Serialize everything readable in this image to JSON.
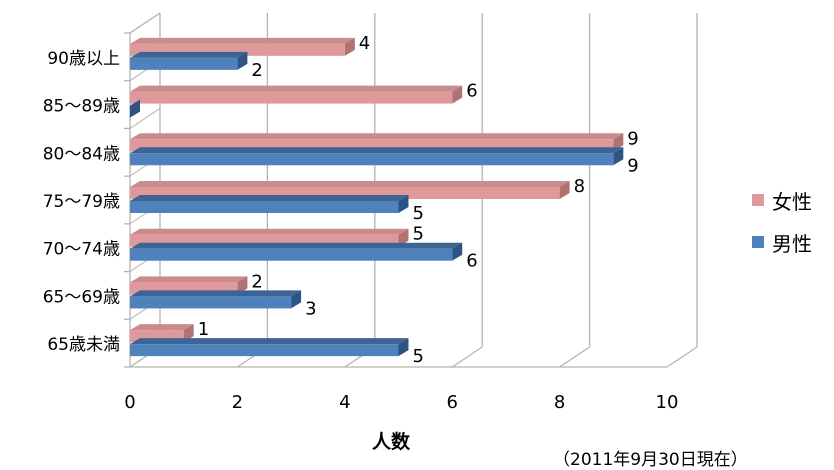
{
  "chart_data": {
    "type": "bar",
    "orientation": "horizontal",
    "categories": [
      "90歳以上",
      "85〜89歳",
      "80〜84歳",
      "75〜79歳",
      "70〜74歳",
      "65〜69歳",
      "65歳未満"
    ],
    "series": [
      {
        "name": "女性",
        "values": [
          4,
          6,
          9,
          8,
          5,
          2,
          1
        ],
        "labels": [
          "4",
          "6",
          "9",
          "8",
          "5",
          "2",
          "1"
        ]
      },
      {
        "name": "男性",
        "values": [
          2,
          0,
          9,
          5,
          6,
          3,
          5
        ],
        "labels": [
          "2",
          "",
          "9",
          "5",
          "6",
          "3",
          "5"
        ]
      }
    ],
    "xticks": [
      "0",
      "2",
      "4",
      "6",
      "8",
      "10"
    ],
    "xlim": [
      0,
      10
    ],
    "xlabel": "人数",
    "grid": true,
    "legend_position": "right",
    "colors": {
      "女性": "#e0999a",
      "男性": "#4f81bd"
    },
    "note": "（2011年9月30日現在）"
  }
}
